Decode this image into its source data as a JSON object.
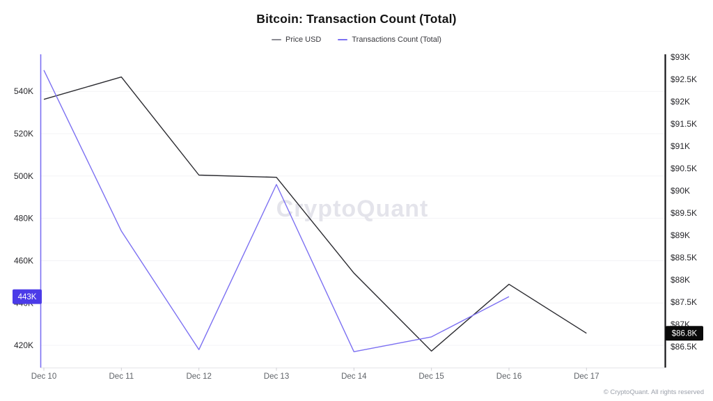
{
  "title": "Bitcoin: Transaction Count (Total)",
  "legend": [
    {
      "label": "Price USD",
      "dash_color": "#8b8b93"
    },
    {
      "label": "Transactions Count (Total)",
      "dash_color": "#7c70f2"
    }
  ],
  "watermark": "CryptoQuant",
  "footer": "© CryptoQuant. All rights reserved",
  "chart_data": {
    "type": "line",
    "title": "Bitcoin: Transaction Count (Total)",
    "x": [
      "Dec 10",
      "Dec 11",
      "Dec 12",
      "Dec 13",
      "Dec 14",
      "Dec 15",
      "Dec 16",
      "Dec 17"
    ],
    "series": [
      {
        "name": "Price USD",
        "axis": "right",
        "color": "#2b2b30",
        "unit": "USD (thousands)",
        "values": [
          92.05,
          92.55,
          90.35,
          90.3,
          88.15,
          86.4,
          87.9,
          86.8
        ]
      },
      {
        "name": "Transactions Count (Total)",
        "axis": "left",
        "color": "#7c70f2",
        "unit": "transactions (thousands)",
        "values": [
          550,
          474,
          418,
          496,
          417,
          424,
          443,
          null
        ]
      }
    ],
    "left_axis": {
      "unit": "transactions (thousands)",
      "min": 409.5,
      "max": 557.5,
      "line_color": "#7c70f2",
      "ticks": [
        {
          "label": "420K",
          "value": 420
        },
        {
          "label": "440K",
          "value": 440
        },
        {
          "label": "460K",
          "value": 460
        },
        {
          "label": "480K",
          "value": 480
        },
        {
          "label": "500K",
          "value": 500
        },
        {
          "label": "520K",
          "value": 520
        },
        {
          "label": "540K",
          "value": 540
        }
      ]
    },
    "right_axis": {
      "unit": "USD (thousands)",
      "min": 86.03,
      "max": 93.06,
      "line_color": "#141417",
      "ticks": [
        {
          "label": "$86.5K",
          "value": 86.5
        },
        {
          "label": "$87K",
          "value": 87
        },
        {
          "label": "$87.5K",
          "value": 87.5
        },
        {
          "label": "$88K",
          "value": 88
        },
        {
          "label": "$88.5K",
          "value": 88.5
        },
        {
          "label": "$89K",
          "value": 89
        },
        {
          "label": "$89.5K",
          "value": 89.5
        },
        {
          "label": "$90K",
          "value": 90
        },
        {
          "label": "$90.5K",
          "value": 90.5
        },
        {
          "label": "$91K",
          "value": 91
        },
        {
          "label": "$91.5K",
          "value": 91.5
        },
        {
          "label": "$92K",
          "value": 92
        },
        {
          "label": "$92.5K",
          "value": 92.5
        },
        {
          "label": "$93K",
          "value": 93
        }
      ]
    },
    "badges": [
      {
        "text": "443K",
        "axis": "left",
        "value": 443,
        "bg": "#4b3be8",
        "fg": "#ffffff"
      },
      {
        "text": "$86.8K",
        "axis": "right",
        "value": 86.8,
        "bg": "#0a0a0a",
        "fg": "#ffffff"
      }
    ],
    "grid": "horizontal",
    "legend_position": "top"
  }
}
